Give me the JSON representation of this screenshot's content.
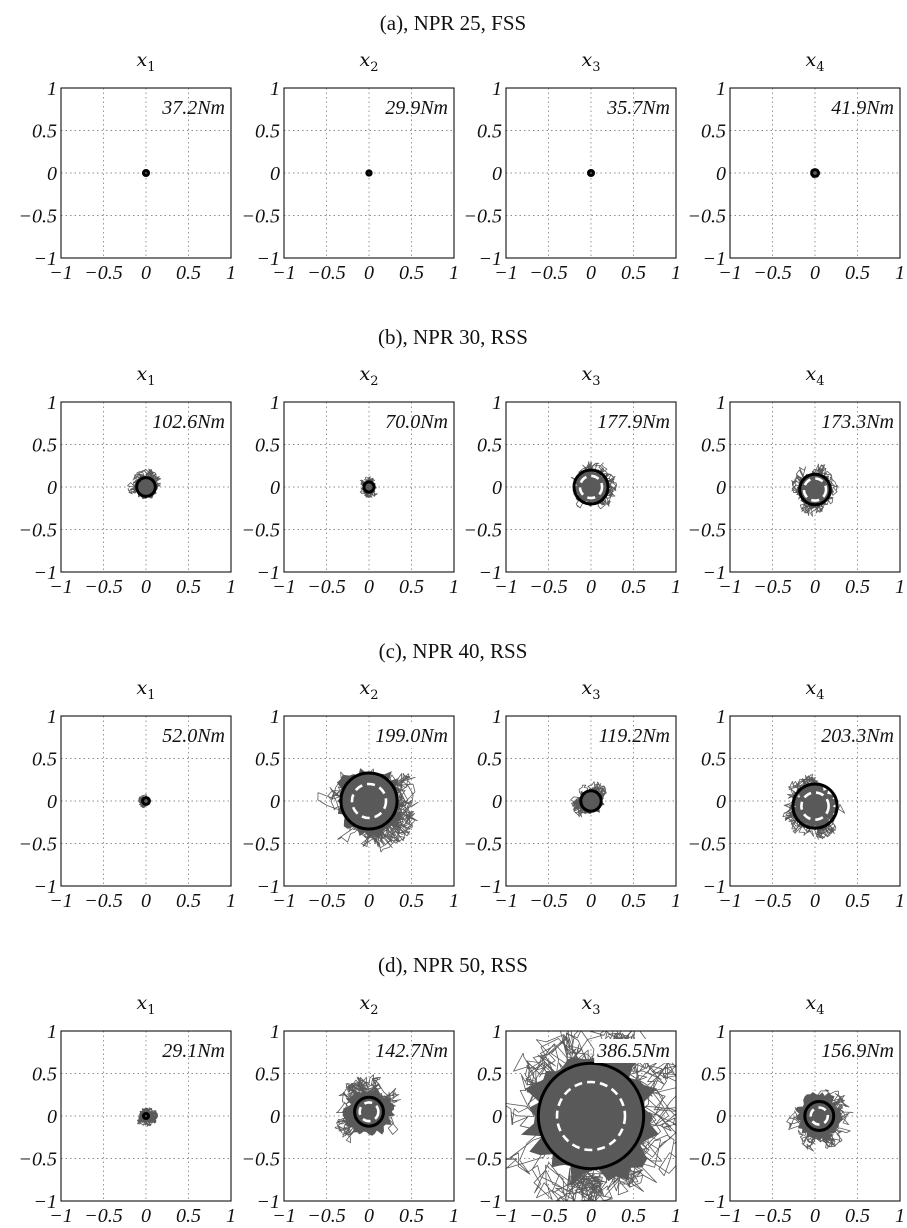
{
  "chart_data": [
    {
      "type": "scatter",
      "row_title": "(a), NPR 25, FSS",
      "xlim": [
        -1,
        1
      ],
      "ylim": [
        -1,
        1
      ],
      "xticks": [
        "−1",
        "−0.5",
        "0",
        "0.5",
        "1"
      ],
      "yticks": [
        "1",
        "0.5",
        "0",
        "−0.5",
        "−1"
      ],
      "grid": true,
      "panels": [
        {
          "title": "x",
          "subscript": "1",
          "torque": "37.2Nm",
          "center": [
            0.0,
            0.0
          ],
          "spread": 0.02,
          "solid_r": 0.03,
          "dashed_r": 0.0
        },
        {
          "title": "x",
          "subscript": "2",
          "torque": "29.9Nm",
          "center": [
            0.0,
            0.0
          ],
          "spread": 0.02,
          "solid_r": 0.025,
          "dashed_r": 0.0
        },
        {
          "title": "x",
          "subscript": "3",
          "torque": "35.7Nm",
          "center": [
            0.0,
            0.0
          ],
          "spread": 0.04,
          "solid_r": 0.03,
          "dashed_r": 0.0
        },
        {
          "title": "x",
          "subscript": "4",
          "torque": "41.9Nm",
          "center": [
            0.0,
            0.0
          ],
          "spread": 0.06,
          "solid_r": 0.04,
          "dashed_r": 0.0
        }
      ]
    },
    {
      "type": "scatter",
      "row_title": "(b), NPR 30, RSS",
      "xlim": [
        -1,
        1
      ],
      "ylim": [
        -1,
        1
      ],
      "xticks": [
        "−1",
        "−0.5",
        "0",
        "0.5",
        "1"
      ],
      "yticks": [
        "1",
        "0.5",
        "0",
        "−0.5",
        "−1"
      ],
      "grid": true,
      "panels": [
        {
          "title": "x",
          "subscript": "1",
          "torque": "102.6Nm",
          "center": [
            0.0,
            0.0
          ],
          "spread": 0.22,
          "solid_r": 0.11,
          "dashed_r": 0.0
        },
        {
          "title": "x",
          "subscript": "2",
          "torque": "70.0Nm",
          "center": [
            0.0,
            0.0
          ],
          "spread": 0.13,
          "solid_r": 0.06,
          "dashed_r": 0.0
        },
        {
          "title": "x",
          "subscript": "3",
          "torque": "177.9Nm",
          "center": [
            0.0,
            0.0
          ],
          "spread": 0.32,
          "solid_r": 0.2,
          "dashed_r": 0.13
        },
        {
          "title": "x",
          "subscript": "4",
          "torque": "173.3Nm",
          "center": [
            0.0,
            -0.03
          ],
          "spread": 0.32,
          "solid_r": 0.18,
          "dashed_r": 0.13
        }
      ]
    },
    {
      "type": "scatter",
      "row_title": "(c), NPR 40, RSS",
      "xlim": [
        -1,
        1
      ],
      "ylim": [
        -1,
        1
      ],
      "xticks": [
        "−1",
        "−0.5",
        "0",
        "0.5",
        "1"
      ],
      "yticks": [
        "1",
        "0.5",
        "0",
        "−0.5",
        "−1"
      ],
      "grid": true,
      "panels": [
        {
          "title": "x",
          "subscript": "1",
          "torque": "52.0Nm",
          "center": [
            0.0,
            0.0
          ],
          "spread": 0.09,
          "solid_r": 0.04,
          "dashed_r": 0.0
        },
        {
          "title": "x",
          "subscript": "2",
          "torque": "199.0Nm",
          "center": [
            0.0,
            0.0
          ],
          "spread": 0.62,
          "solid_r": 0.33,
          "dashed_r": 0.2
        },
        {
          "title": "x",
          "subscript": "3",
          "torque": "119.2Nm",
          "center": [
            0.0,
            0.0
          ],
          "spread": 0.24,
          "solid_r": 0.12,
          "dashed_r": 0.0
        },
        {
          "title": "x",
          "subscript": "4",
          "torque": "203.3Nm",
          "center": [
            0.0,
            -0.06
          ],
          "spread": 0.4,
          "solid_r": 0.26,
          "dashed_r": 0.16
        }
      ]
    },
    {
      "type": "scatter",
      "row_title": "(d), NPR 50, RSS",
      "xlim": [
        -1,
        1
      ],
      "ylim": [
        -1,
        1
      ],
      "xticks": [
        "−1",
        "−0.5",
        "0",
        "0.5",
        "1"
      ],
      "yticks": [
        "1",
        "0.5",
        "0",
        "−0.5",
        "−1"
      ],
      "grid": true,
      "panels": [
        {
          "title": "x",
          "subscript": "1",
          "torque": "29.1Nm",
          "center": [
            0.0,
            0.0
          ],
          "spread": 0.14,
          "solid_r": 0.03,
          "dashed_r": 0.0
        },
        {
          "title": "x",
          "subscript": "2",
          "torque": "142.7Nm",
          "center": [
            0.0,
            0.05
          ],
          "spread": 0.44,
          "solid_r": 0.17,
          "dashed_r": 0.11
        },
        {
          "title": "x",
          "subscript": "3",
          "torque": "386.5Nm",
          "center": [
            0.0,
            0.0
          ],
          "spread": 1.2,
          "solid_r": 0.62,
          "dashed_r": 0.4
        },
        {
          "title": "x",
          "subscript": "4",
          "torque": "156.9Nm",
          "center": [
            0.05,
            0.0
          ],
          "spread": 0.42,
          "solid_r": 0.17,
          "dashed_r": 0.1
        }
      ]
    }
  ]
}
